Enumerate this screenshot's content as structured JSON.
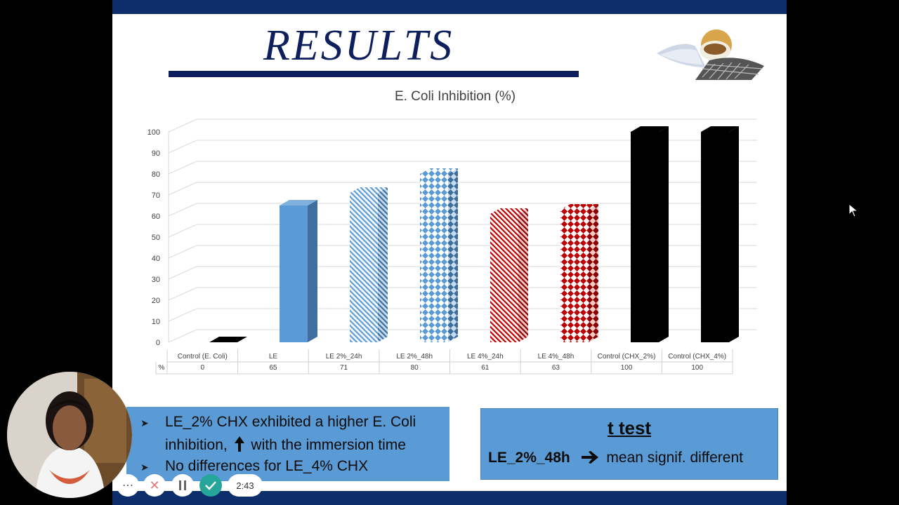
{
  "slide": {
    "title": "RESULTS"
  },
  "chart_data": {
    "type": "bar",
    "title": "E. Coli Inhibition (%)",
    "categories": [
      "Control (E. Coli)",
      "LE",
      "LE 2%_24h",
      "LE 2%_48h",
      "LE 4%_24h",
      "LE 4%_48h",
      "Control (CHX_2%)",
      "Control (CHX_4%)"
    ],
    "series": [
      {
        "name": "%",
        "values": [
          0,
          65,
          71,
          80,
          61,
          63,
          100,
          100
        ]
      }
    ],
    "table_labels": [
      "0",
      "65",
      "71",
      "80",
      "61",
      "63",
      "100",
      "100"
    ],
    "y_ticks": [
      "0",
      "10",
      "20",
      "30",
      "40",
      "50",
      "60",
      "70",
      "80",
      "90",
      "100"
    ],
    "ylim": [
      0,
      100
    ],
    "grid": true,
    "bar_styles": [
      "black",
      "solid-blue",
      "blue-diagonal",
      "blue-diamond",
      "red-diagonal",
      "red-diamond",
      "black",
      "black"
    ],
    "colors": {
      "blue": "#5b9bd5",
      "red": "#c00000",
      "black": "#000000"
    }
  },
  "notes": {
    "bullet_1_line_1": "LE_2% CHX exhibited a higher  E. Coli",
    "bullet_1_line_2a": "inhibition,",
    "bullet_1_line_2b": "with the immersion time",
    "bullet_2": "No differences for LE_4% CHX",
    "bullet_icon": "arrow-bullet-icon",
    "up_arrow_icon": "up-arrow-icon"
  },
  "ttest": {
    "title": "t test",
    "group": "LE_2%_48h",
    "result": "mean signif. different",
    "arrow_icon": "right-arrow-icon"
  },
  "player": {
    "time": "2:43",
    "controls": [
      "more-icon",
      "close-icon",
      "pause-icon",
      "check-icon"
    ],
    "colors": {
      "close": "#e57373",
      "check": "#26a69a"
    }
  }
}
